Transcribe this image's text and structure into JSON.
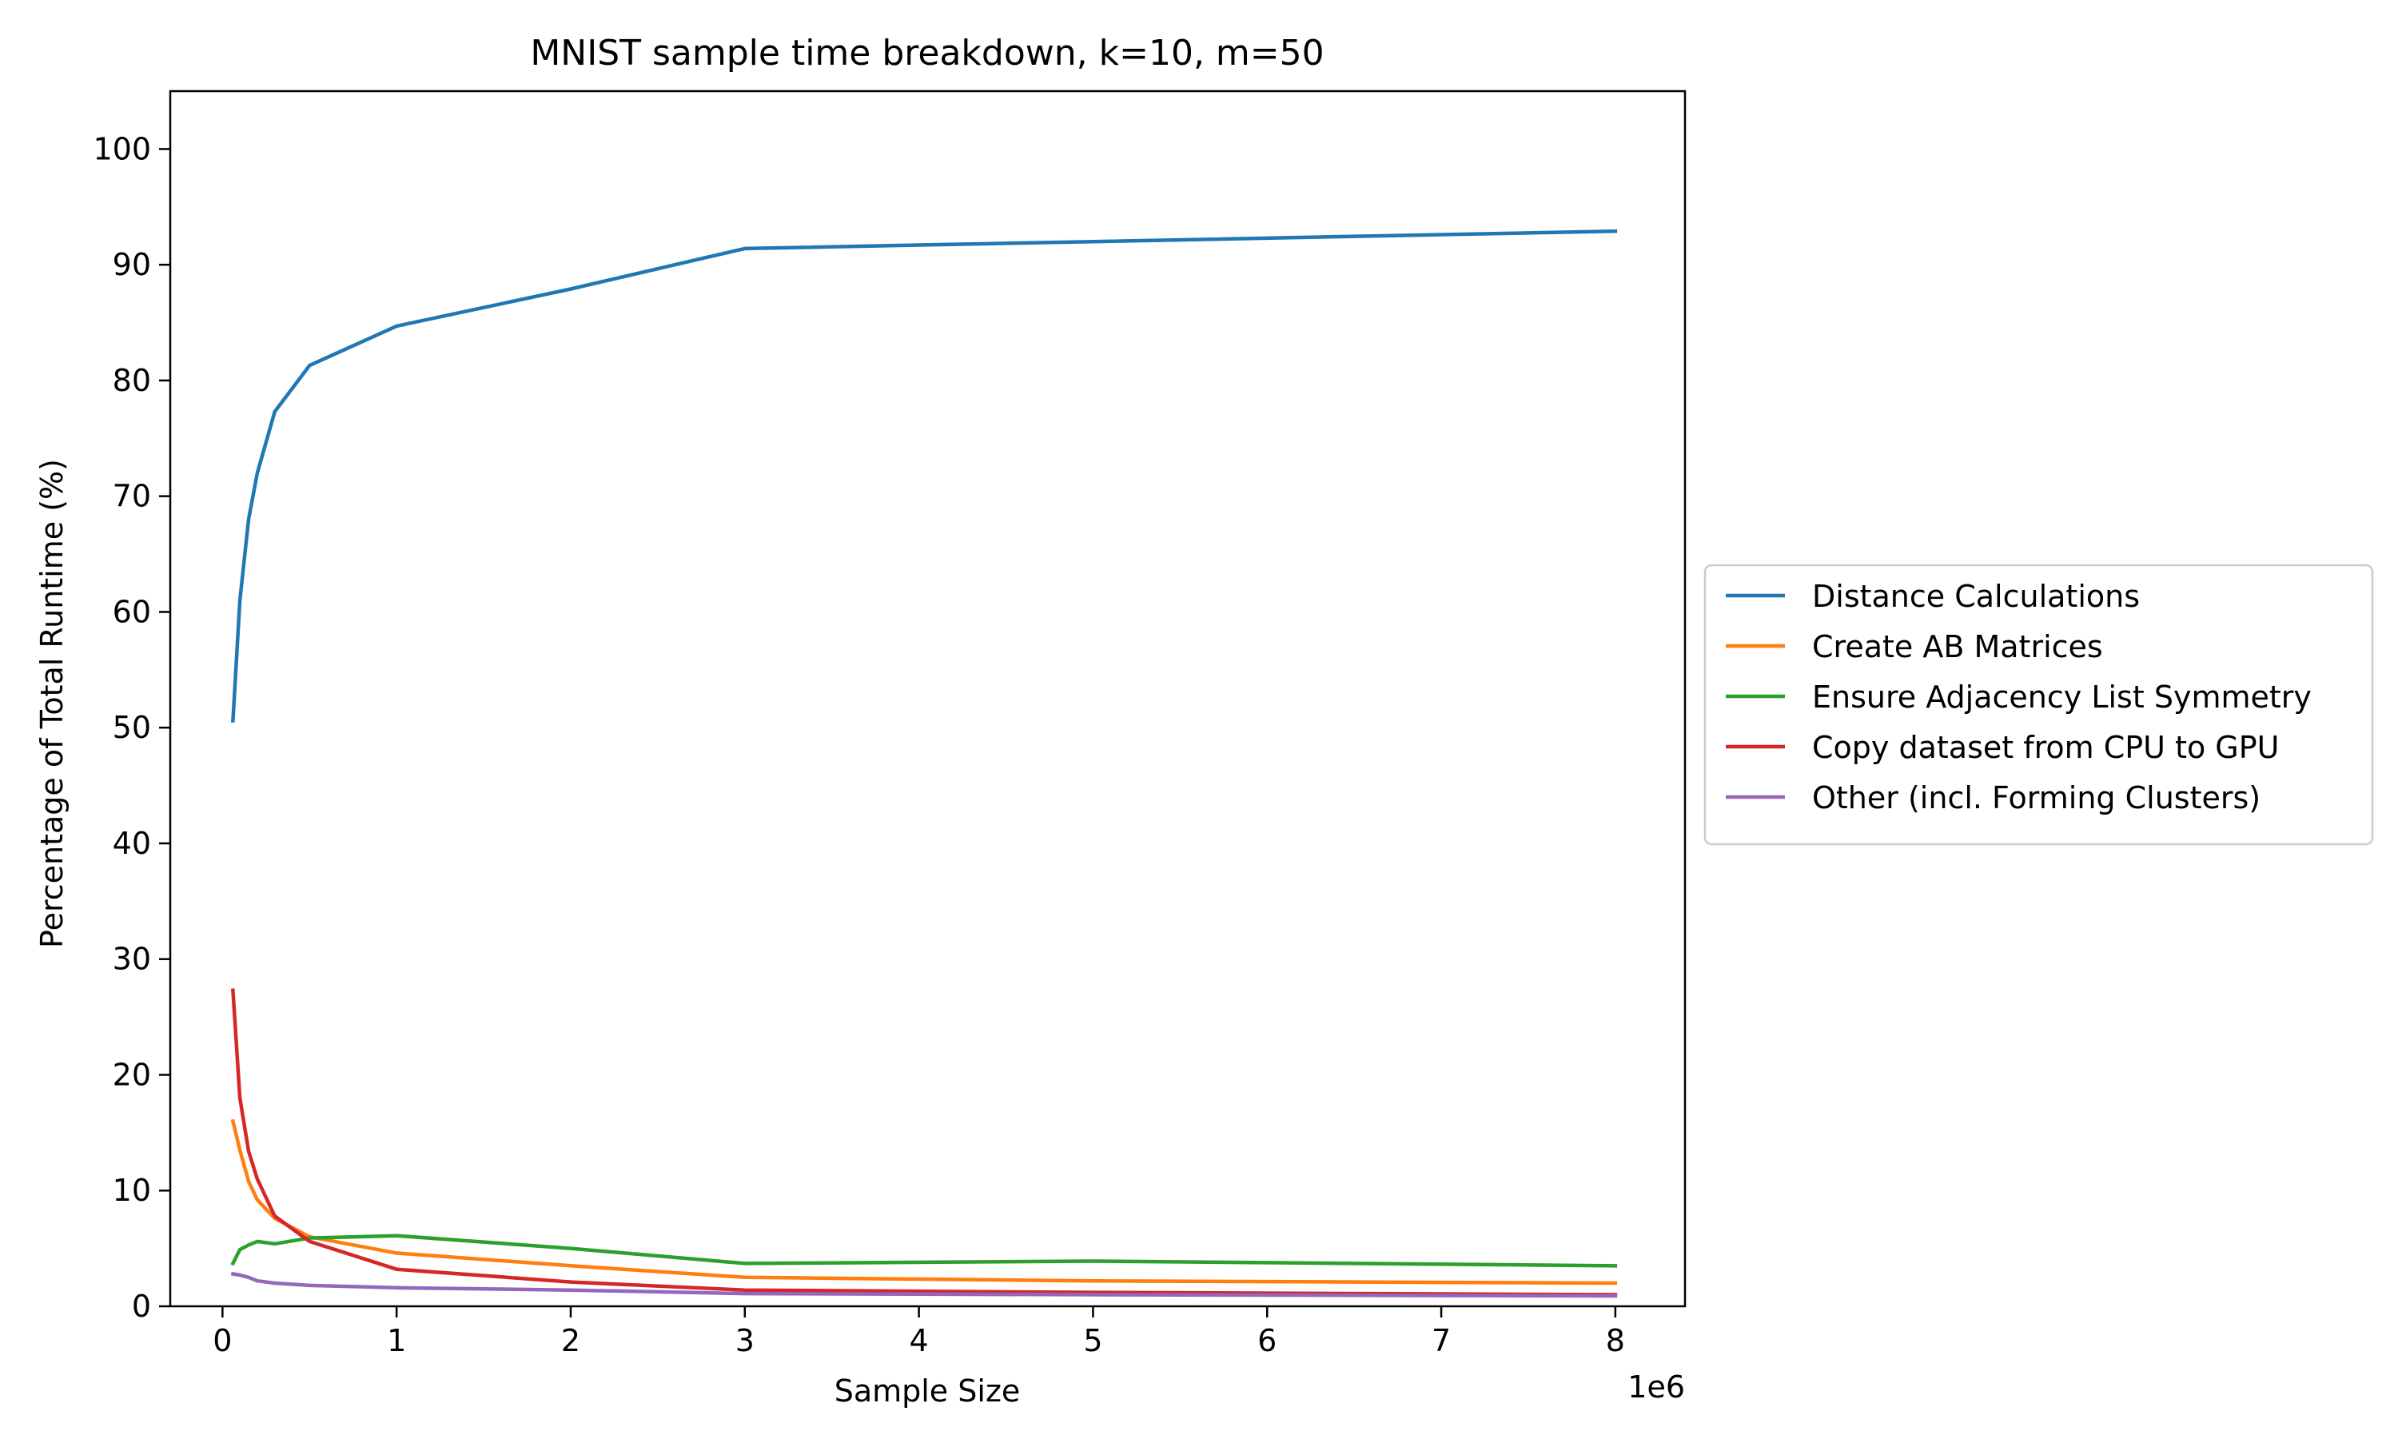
{
  "chart_data": {
    "type": "line",
    "title": "MNIST sample time breakdown, k=10, m=50",
    "xlabel": "Sample Size",
    "ylabel": "Percentage of Total Runtime (%)",
    "x_offset_label": "1e6",
    "xlim": [
      -0.3,
      8.4
    ],
    "ylim": [
      0,
      105
    ],
    "x_ticks": [
      0,
      1,
      2,
      3,
      4,
      5,
      6,
      7,
      8
    ],
    "y_ticks": [
      0,
      10,
      20,
      30,
      40,
      50,
      60,
      70,
      80,
      90,
      100
    ],
    "grid": false,
    "legend_position": "outside-right",
    "x": [
      0.06,
      0.1,
      0.15,
      0.2,
      0.3,
      0.5,
      1,
      2,
      3,
      5,
      8
    ],
    "series": [
      {
        "name": "Distance Calculations",
        "color": "#1f77b4",
        "values": [
          50.6,
          61.0,
          68.0,
          72.0,
          77.3,
          81.3,
          84.7,
          87.9,
          91.4,
          92.0,
          92.9
        ]
      },
      {
        "name": "Create AB Matrices",
        "color": "#ff7f0e",
        "values": [
          16.0,
          13.5,
          10.8,
          9.2,
          7.6,
          6.0,
          4.6,
          3.5,
          2.5,
          2.2,
          2.0
        ]
      },
      {
        "name": "Ensure Adjacency List Symmetry",
        "color": "#2ca02c",
        "values": [
          3.7,
          4.9,
          5.3,
          5.6,
          5.4,
          5.9,
          6.1,
          5.0,
          3.7,
          3.9,
          3.5
        ]
      },
      {
        "name": "Copy dataset from CPU to GPU",
        "color": "#d62728",
        "values": [
          27.3,
          18.0,
          13.4,
          11.0,
          7.8,
          5.6,
          3.2,
          2.1,
          1.4,
          1.2,
          1.0
        ]
      },
      {
        "name": "Other (incl. Forming Clusters)",
        "color": "#9467bd",
        "values": [
          2.8,
          2.7,
          2.5,
          2.2,
          2.0,
          1.8,
          1.6,
          1.4,
          1.1,
          1.0,
          0.9
        ]
      }
    ]
  }
}
